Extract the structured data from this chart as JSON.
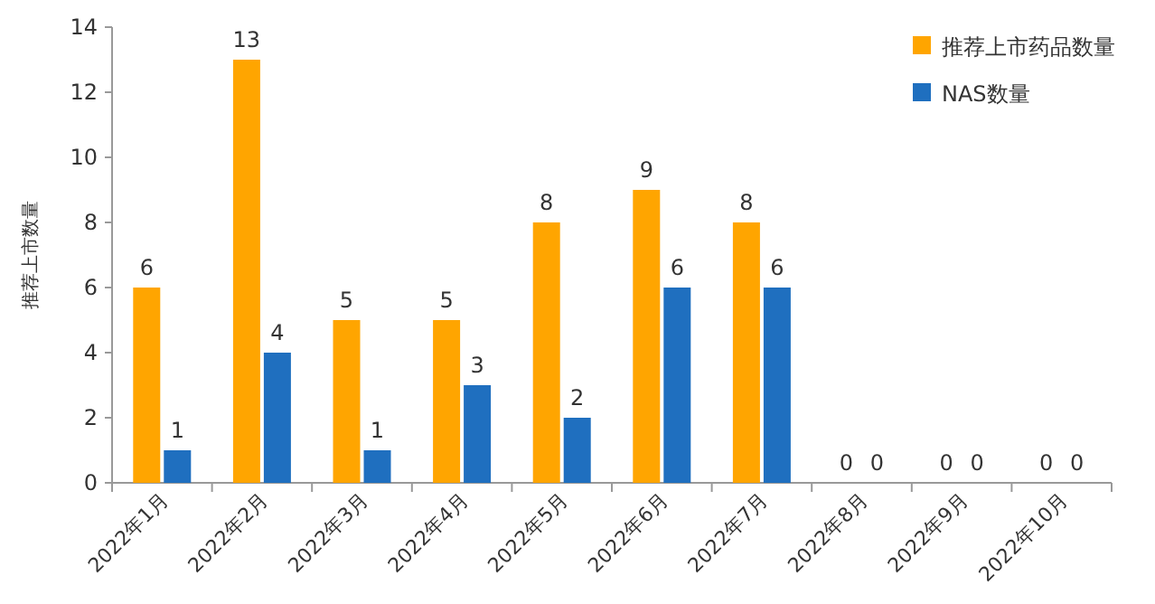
{
  "chart_data": {
    "type": "bar",
    "ylabel": "推荐上市数量",
    "categories": [
      "2022年1月",
      "2022年2月",
      "2022年3月",
      "2022年4月",
      "2022年5月",
      "2022年6月",
      "2022年7月",
      "2022年8月",
      "2022年9月",
      "2022年10月"
    ],
    "series": [
      {
        "name": "推荐上市药品数量",
        "color": "#ffa500",
        "values": [
          6,
          13,
          5,
          5,
          8,
          9,
          8,
          0,
          0,
          0
        ]
      },
      {
        "name": "NAS数量",
        "color": "#1f6fbf",
        "values": [
          1,
          4,
          1,
          3,
          2,
          6,
          6,
          0,
          0,
          0
        ]
      }
    ],
    "ylim": [
      0,
      14
    ],
    "yticks": [
      0,
      2,
      4,
      6,
      8,
      10,
      12,
      14
    ],
    "data_labels": true,
    "legend": "top right",
    "grid": false
  }
}
